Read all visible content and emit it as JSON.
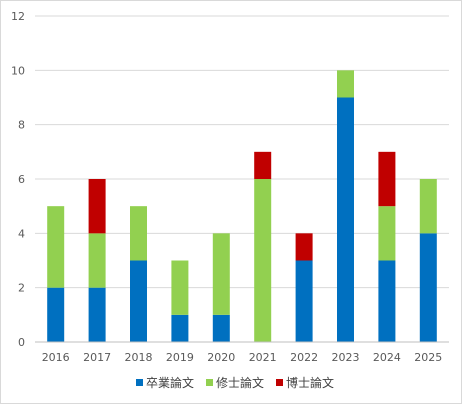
{
  "chart_data": {
    "type": "bar",
    "stacked": true,
    "categories": [
      "2016",
      "2017",
      "2018",
      "2019",
      "2020",
      "2021",
      "2022",
      "2023",
      "2024",
      "2025"
    ],
    "series": [
      {
        "name": "卒業論文",
        "color": "#0070c0",
        "values": [
          2,
          2,
          3,
          1,
          1,
          0,
          3,
          9,
          3,
          4
        ]
      },
      {
        "name": "修士論文",
        "color": "#92d050",
        "values": [
          3,
          2,
          2,
          2,
          3,
          6,
          0,
          1,
          2,
          2
        ]
      },
      {
        "name": "博士論文",
        "color": "#c00000",
        "values": [
          0,
          2,
          0,
          0,
          0,
          1,
          1,
          0,
          2,
          0
        ]
      }
    ],
    "yticks": [
      "0",
      "2",
      "4",
      "6",
      "8",
      "10",
      "12"
    ],
    "ylim": [
      0,
      12
    ],
    "grid": true,
    "legend_position": "bottom",
    "gridline_color": "#d9d9d9",
    "axis_color": "#bfbfbf"
  }
}
